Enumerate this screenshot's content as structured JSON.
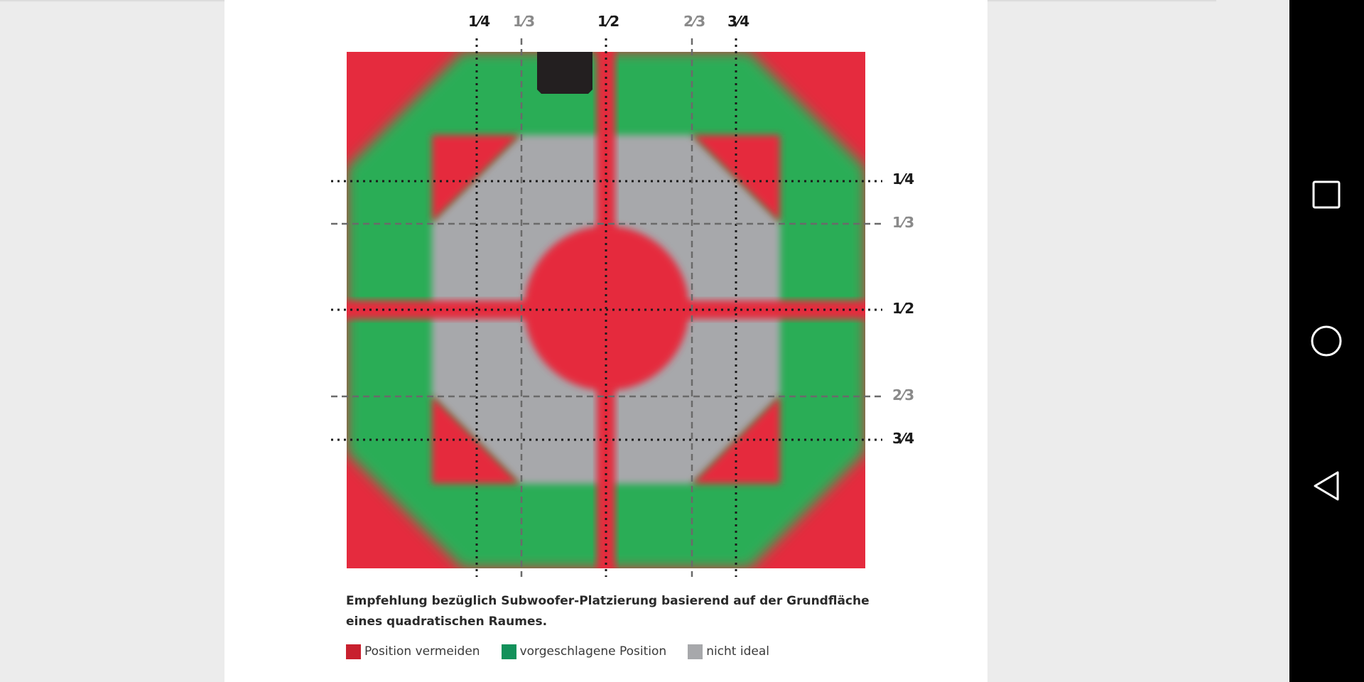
{
  "figure": {
    "top_labels": [
      "1⁄4",
      "1⁄3",
      "1⁄2",
      "2⁄3",
      "3⁄4"
    ],
    "side_labels": [
      "1⁄4",
      "1⁄3",
      "1⁄2",
      "2⁄3",
      "3⁄4"
    ],
    "colors": {
      "avoid": "#e52b3e",
      "suggested": "#29ad57",
      "not_ideal": "#a7a8ab",
      "subwoofer": "#231f20"
    }
  },
  "caption": "Empfehlung bezüglich Subwoofer-Platzierung basierend auf der Grundfläche eines quadratischen Raumes.",
  "legend": [
    {
      "label": "Position vermeiden",
      "color": "#c8202e"
    },
    {
      "label": "vorgeschlagene Position",
      "color": "#12915a"
    },
    {
      "label": "nicht ideal",
      "color": "#a7a8ab"
    }
  ],
  "navbar": {
    "recents_icon": "square-icon",
    "home_icon": "circle-icon",
    "back_icon": "triangle-back-icon"
  }
}
